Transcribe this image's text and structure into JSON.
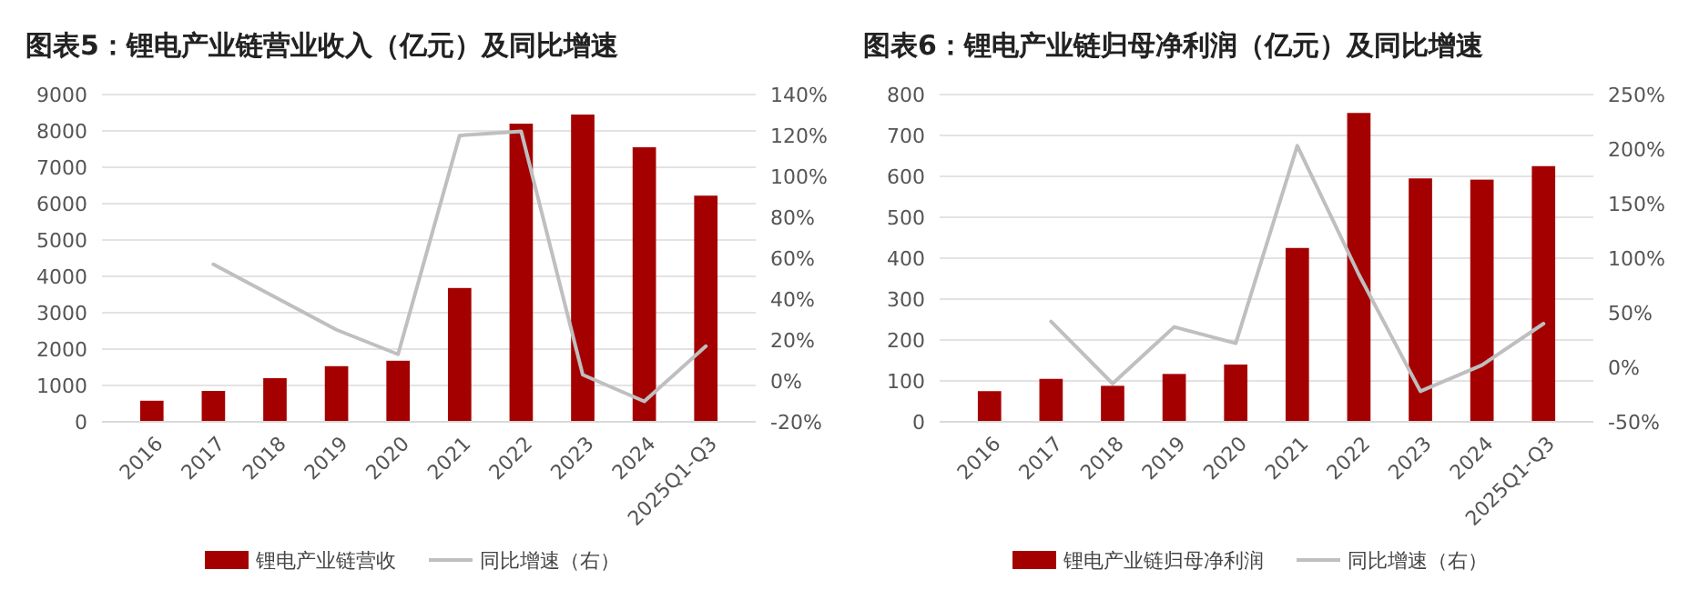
{
  "chart_data": [
    {
      "type": "bar",
      "title": "图表5：锂电产业链营业收入（亿元）及同比增速",
      "categories": [
        "2016",
        "2017",
        "2018",
        "2019",
        "2020",
        "2021",
        "2022",
        "2023",
        "2024",
        "2025Q1-Q3"
      ],
      "series": [
        {
          "name": "锂电产业链营收",
          "color": "#a50000",
          "values": [
            580,
            850,
            1200,
            1530,
            1680,
            3680,
            8200,
            8450,
            7550,
            6220
          ]
        },
        {
          "name": "同比增速（右）",
          "type": "line",
          "axis": "y2",
          "color": "#bfbfbf",
          "values": [
            null,
            57,
            41,
            25,
            13,
            120,
            122,
            3,
            -10,
            17
          ]
        }
      ],
      "ylim": [
        0,
        9000
      ],
      "yticks": [
        0,
        1000,
        2000,
        3000,
        4000,
        5000,
        6000,
        7000,
        8000,
        9000
      ],
      "y2lim": [
        -20,
        140
      ],
      "y2ticks": [
        {
          "value": -20,
          "label": "-20%"
        },
        {
          "value": 0,
          "label": "0%"
        },
        {
          "value": 20,
          "label": "20%"
        },
        {
          "value": 40,
          "label": "40%"
        },
        {
          "value": 60,
          "label": "60%"
        },
        {
          "value": 80,
          "label": "80%"
        },
        {
          "value": 100,
          "label": "100%"
        },
        {
          "value": 120,
          "label": "120%"
        },
        {
          "value": 140,
          "label": "140%"
        }
      ],
      "grid": "y",
      "legend": "bottom"
    },
    {
      "type": "bar",
      "title": "图表6：锂电产业链归母净利润（亿元）及同比增速",
      "categories": [
        "2016",
        "2017",
        "2018",
        "2019",
        "2020",
        "2021",
        "2022",
        "2023",
        "2024",
        "2025Q1-Q3"
      ],
      "series": [
        {
          "name": "锂电产业链归母净利润",
          "color": "#a50000",
          "values": [
            75,
            105,
            88,
            117,
            140,
            425,
            755,
            595,
            592,
            625
          ]
        },
        {
          "name": "同比增速（右）",
          "type": "line",
          "axis": "y2",
          "color": "#bfbfbf",
          "values": [
            null,
            42,
            -15,
            37,
            22,
            203,
            85,
            -22,
            2,
            40
          ]
        }
      ],
      "ylim": [
        0,
        800
      ],
      "yticks": [
        0,
        100,
        200,
        300,
        400,
        500,
        600,
        700,
        800
      ],
      "y2lim": [
        -50,
        250
      ],
      "y2ticks": [
        {
          "value": -50,
          "label": "-50%"
        },
        {
          "value": 0,
          "label": "0%"
        },
        {
          "value": 50,
          "label": "50%"
        },
        {
          "value": 100,
          "label": "100%"
        },
        {
          "value": 150,
          "label": "150%"
        },
        {
          "value": 200,
          "label": "200%"
        },
        {
          "value": 250,
          "label": "250%"
        }
      ],
      "grid": "y",
      "legend": "bottom"
    }
  ]
}
